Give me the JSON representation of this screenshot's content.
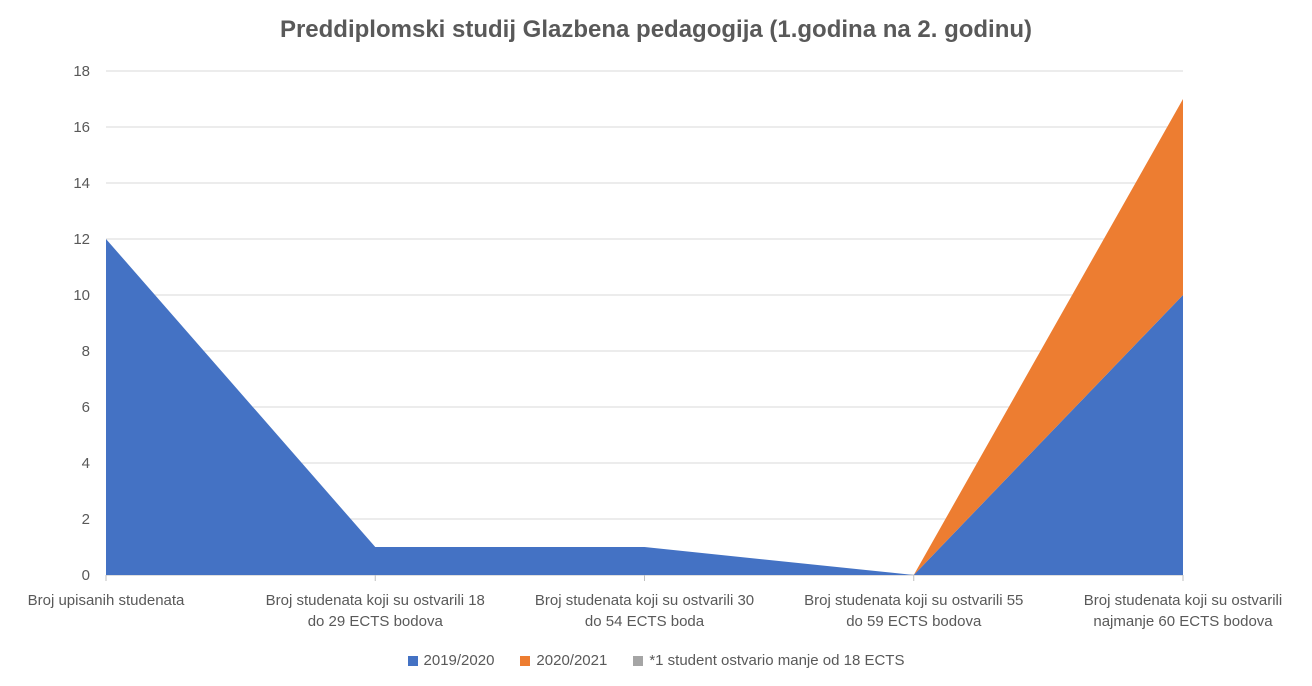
{
  "chart_data": {
    "type": "area",
    "stacked": true,
    "title": "Preddiplomski studij Glazbena pedagogija (1.godina na 2. godinu)",
    "categories": [
      [
        "Broj upisanih studenata"
      ],
      [
        "Broj studenata koji su ostvarili 18",
        "do 29 ECTS bodova"
      ],
      [
        "Broj studenata koji su ostvarili 30",
        "do 54 ECTS boda"
      ],
      [
        "Broj studenata koji su ostvarili 55",
        "do 59 ECTS bodova"
      ],
      [
        "Broj studenata koji su ostvarili",
        "najmanje 60 ECTS bodova"
      ]
    ],
    "series": [
      {
        "name": "2019/2020",
        "color": "#4472C4",
        "values": [
          12,
          1,
          1,
          0,
          10
        ]
      },
      {
        "name": "2020/2021",
        "color": "#ED7D31",
        "values": [
          0,
          0,
          0,
          0,
          7
        ]
      },
      {
        "name": "*1 student ostvario manje od 18 ECTS",
        "color": "#A5A5A5",
        "values": [
          0,
          0,
          0,
          0,
          0
        ]
      }
    ],
    "ylim": [
      0,
      18
    ],
    "yticks": [
      0,
      2,
      4,
      6,
      8,
      10,
      12,
      14,
      16,
      18
    ],
    "grid": true,
    "legend_position": "bottom",
    "xlabel": "",
    "ylabel": ""
  }
}
